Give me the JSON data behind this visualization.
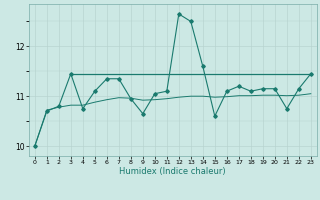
{
  "x": [
    0,
    1,
    2,
    3,
    4,
    5,
    6,
    7,
    8,
    9,
    10,
    11,
    12,
    13,
    14,
    15,
    16,
    17,
    18,
    19,
    20,
    21,
    22,
    23
  ],
  "y_line": [
    10.0,
    10.7,
    10.8,
    11.45,
    10.75,
    11.1,
    11.35,
    11.35,
    10.95,
    10.65,
    11.05,
    11.1,
    12.65,
    12.5,
    11.6,
    10.6,
    11.1,
    11.2,
    11.1,
    11.15,
    11.15,
    10.75,
    11.15,
    11.45
  ],
  "y_trend_x": [
    3,
    23
  ],
  "y_trend_y": [
    11.45,
    11.45
  ],
  "y_smooth": [
    10.0,
    10.72,
    10.78,
    10.82,
    10.82,
    10.88,
    10.93,
    10.97,
    10.96,
    10.92,
    10.93,
    10.95,
    10.98,
    11.0,
    11.0,
    10.98,
    10.99,
    11.01,
    11.01,
    11.02,
    11.02,
    11.01,
    11.02,
    11.05
  ],
  "color": "#1a7a6e",
  "bg_color": "#cce8e4",
  "grid_color": "#b8d4d0",
  "xlabel": "Humidex (Indice chaleur)",
  "ylim": [
    9.8,
    12.85
  ],
  "xlim": [
    -0.5,
    23.5
  ],
  "yticks": [
    10,
    11,
    12
  ],
  "xticks": [
    0,
    1,
    2,
    3,
    4,
    5,
    6,
    7,
    8,
    9,
    10,
    11,
    12,
    13,
    14,
    15,
    16,
    17,
    18,
    19,
    20,
    21,
    22,
    23
  ],
  "figsize": [
    3.2,
    2.0
  ],
  "dpi": 100
}
